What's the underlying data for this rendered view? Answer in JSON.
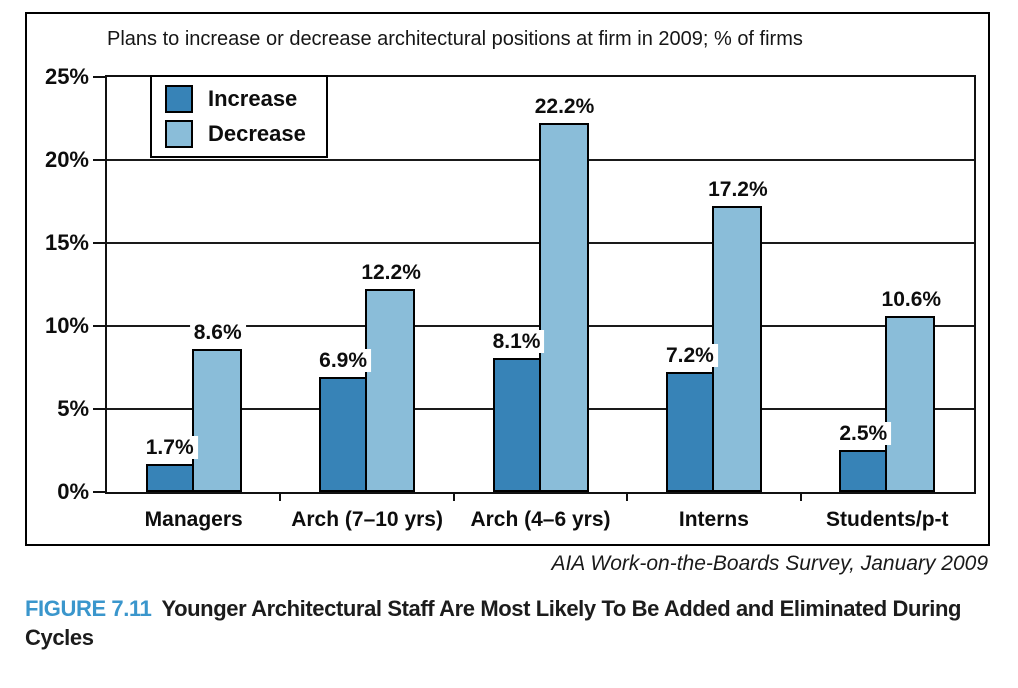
{
  "chart_data": {
    "type": "bar",
    "title": "Plans to increase or decrease architectural positions at firm in 2009; % of firms",
    "categories": [
      "Managers",
      "Arch (7–10 yrs)",
      "Arch (4–6 yrs)",
      "Interns",
      "Students/p-t"
    ],
    "series": [
      {
        "name": "Increase",
        "color": "#3783b7",
        "values": [
          1.7,
          6.9,
          8.1,
          7.2,
          2.5
        ]
      },
      {
        "name": "Decrease",
        "color": "#8abdd9",
        "values": [
          8.6,
          12.2,
          22.2,
          17.2,
          10.6
        ]
      }
    ],
    "value_label_format": "{v}%",
    "ylim": [
      0,
      25
    ],
    "yticks": [
      0,
      5,
      10,
      15,
      20,
      25
    ],
    "ytick_format": "{v}%",
    "grid": true,
    "legend_position": "top-left",
    "bar_border_color": "#000000"
  },
  "source": "AIA Work-on-the-Boards Survey, January 2009",
  "caption": {
    "label": "FIGURE 7.11",
    "text": "Younger Architectural Staff Are Most Likely To Be Added and Eliminated During Cycles",
    "label_color": "#3a96cc"
  }
}
